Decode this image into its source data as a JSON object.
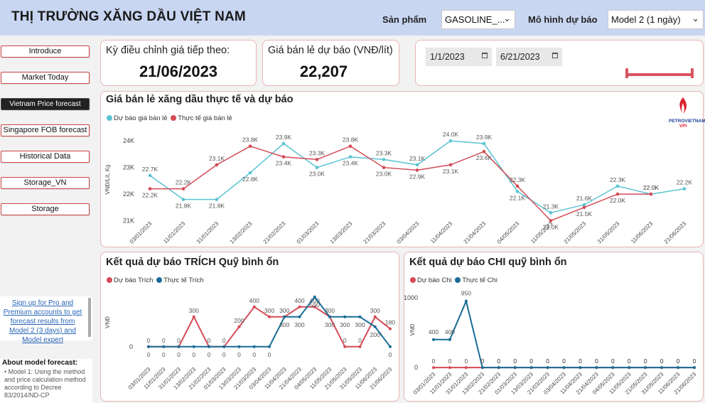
{
  "header": {
    "title": "THỊ TRƯỜNG XĂNG DẦU VIỆT NAM",
    "product_label": "Sản phẩm",
    "product_value": "GASOLINE_...",
    "model_label": "Mô hình dự báo",
    "model_value": "Model 2 (1 ngày)"
  },
  "nav": [
    "Introduce",
    "Market Today",
    "Vietnam Price forecast",
    "Singapore FOB forecast",
    "Historical Data",
    "Storage_VN",
    "Storage"
  ],
  "nav_active": "Vietnam Price forecast",
  "kpi": {
    "next_adjust_label": "Kỳ điều chỉnh giá tiếp theo:",
    "next_adjust_value": "21/06/2023",
    "forecast_price_label": "Giá bán lẻ dự báo (VNĐ/lít)",
    "forecast_price_value": "22,207"
  },
  "date_range": {
    "start": "1/1/2023",
    "end": "6/21/2023"
  },
  "promo": {
    "link_text": "Sign up for Pro and Premium accounts to get forecast results from Model 2 (3 days) and Model expert",
    "about_title": "About model forecast:",
    "about_text": "• Model 1: Using the method and price calculation method according to Decree 83/2014/ND-CP"
  },
  "logo": {
    "line1": "PETROVIETNAM",
    "line2": "VPI"
  },
  "charts": {
    "main": {
      "title": "Giá bán lẻ xăng dầu thực tế và dự báo",
      "legend": [
        "Dự báo giá bán lẻ",
        "Thực tế giá bán lẻ"
      ],
      "ylabel": "VNĐ/Lít, Kg"
    },
    "trich": {
      "title": "Kết quả dự báo TRÍCH Quỹ bình ổn",
      "legend": [
        "Dự báo Trích",
        "Thực tế Trích"
      ],
      "ylabel": "VNĐ"
    },
    "chi": {
      "title": "Kết quả dự báo CHI quỹ bình ổn",
      "legend": [
        "Dự báo Chi",
        "Thực tế Chi"
      ],
      "ylabel": "VNĐ"
    }
  },
  "colors": {
    "forecast_teal": "#5bc3d3",
    "actual_red": "#d44a55",
    "trich_red": "#d44a55",
    "trich_blue": "#1a6c96"
  },
  "chart_data": [
    {
      "type": "line",
      "title": "Giá bán lẻ xăng dầu thực tế và dự báo",
      "ylabel": "VNĐ/Lít, Kg",
      "ylim": [
        20800,
        24300
      ],
      "yticks": [
        {
          "v": 21000,
          "label": "21K"
        },
        {
          "v": 22000,
          "label": "22K"
        },
        {
          "v": 23000,
          "label": "23K"
        },
        {
          "v": 24000,
          "label": "24K"
        }
      ],
      "x": [
        "03/01/2023",
        "11/01/2023",
        "31/01/2023",
        "13/02/2023",
        "21/02/2023",
        "01/03/2023",
        "13/03/2023",
        "21/03/2023",
        "03/04/2023",
        "11/04/2023",
        "21/04/2023",
        "04/05/2023",
        "11/05/2023",
        "21/05/2023",
        "31/05/2023",
        "11/06/2023",
        "21/06/2023"
      ],
      "series": [
        {
          "name": "Dự báo giá bán lẻ",
          "values": [
            22700,
            21800,
            21800,
            22800,
            23900,
            23000,
            23400,
            23300,
            23100,
            24000,
            23900,
            22100,
            21300,
            21600,
            22300,
            22000,
            22200
          ],
          "labels": [
            "22.7K",
            "21.8K",
            "21.8K",
            "22.8K",
            "23.9K",
            "23.0K",
            "23.4K",
            "23.3K",
            "23.1K",
            "24.0K",
            "23.9K",
            "22.1K",
            "21.3K",
            "21.6K",
            "22.3K",
            "22.0K",
            "22.2K"
          ]
        },
        {
          "name": "Thực tế giá bán lẻ",
          "values": [
            22200,
            22200,
            23100,
            23800,
            23400,
            23300,
            23800,
            23000,
            22900,
            23100,
            23600,
            22300,
            21000,
            21500,
            22000,
            22000,
            null
          ],
          "labels": [
            "22.2K",
            "22.2K",
            "23.1K",
            "23.8K",
            "23.4K",
            "23.3K",
            "23.8K",
            "23.0K",
            "22.9K",
            "23.1K",
            "23.6K",
            "22.3K",
            "21.0K",
            "21.5K",
            "22.0K",
            "22.0K",
            ""
          ]
        }
      ]
    },
    {
      "type": "line",
      "title": "Kết quả dự báo TRÍCH Quỹ bình ổn",
      "ylabel": "VNĐ",
      "ylim": [
        -30,
        520
      ],
      "yticks": [
        {
          "v": 0,
          "label": "0"
        }
      ],
      "x": [
        "03/01/2023",
        "11/01/2023",
        "31/01/2023",
        "13/02/2023",
        "21/02/2023",
        "01/03/2023",
        "13/03/2023",
        "21/03/2023",
        "03/04/2023",
        "11/04/2023",
        "21/04/2023",
        "04/05/2023",
        "11/05/2023",
        "21/05/2023",
        "31/05/2023",
        "11/06/2023",
        "21/06/2023"
      ],
      "series": [
        {
          "name": "Dự báo Trích",
          "values": [
            0,
            0,
            0,
            300,
            0,
            0,
            200,
            400,
            300,
            300,
            400,
            400,
            300,
            0,
            0,
            300,
            180
          ]
        },
        {
          "name": "Thực tế Trích",
          "values": [
            0,
            0,
            0,
            0,
            0,
            0,
            0,
            0,
            0,
            300,
            300,
            500,
            300,
            300,
            300,
            200,
            0
          ]
        }
      ]
    },
    {
      "type": "line",
      "title": "Kết quả dự báo CHI quỹ bình ổn",
      "ylabel": "VNĐ",
      "ylim": [
        -40,
        1120
      ],
      "yticks": [
        {
          "v": 0,
          "label": "0"
        },
        {
          "v": 1000,
          "label": "1000"
        }
      ],
      "x": [
        "03/01/2023",
        "11/01/2023",
        "31/01/2023",
        "13/02/2023",
        "21/02/2023",
        "01/03/2023",
        "13/03/2023",
        "21/03/2023",
        "03/04/2023",
        "11/04/2023",
        "21/04/2023",
        "04/05/2023",
        "11/05/2023",
        "21/05/2023",
        "31/05/2023",
        "11/06/2023",
        "21/06/2023"
      ],
      "series": [
        {
          "name": "Dự báo Chi",
          "values": [
            0,
            0,
            0,
            0,
            0,
            0,
            0,
            0,
            0,
            0,
            0,
            0,
            0,
            0,
            0,
            0,
            0
          ]
        },
        {
          "name": "Thực tế Chi",
          "values": [
            400,
            400,
            950,
            0,
            0,
            0,
            0,
            0,
            0,
            0,
            0,
            0,
            0,
            0,
            0,
            0,
            0
          ]
        }
      ]
    }
  ]
}
